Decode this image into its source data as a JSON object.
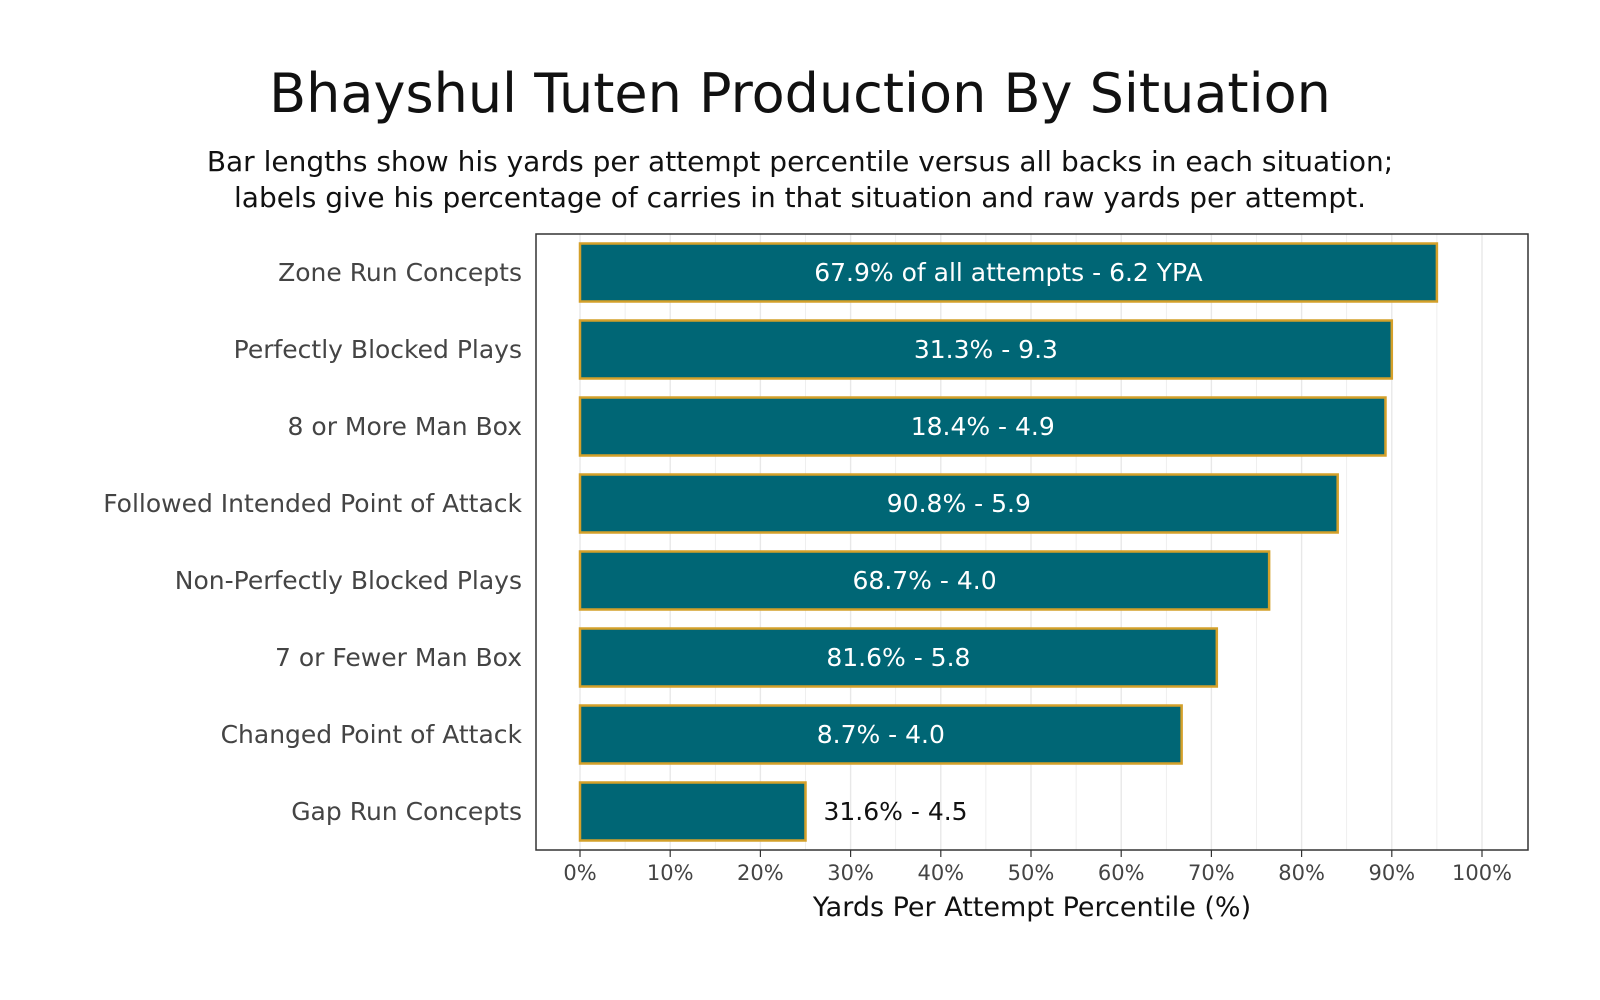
{
  "title": "Bhayshul Tuten Production By Situation",
  "subtitle_lines": [
    "Bar lengths show his yards per attempt percentile versus all backs in each situation;",
    "labels give his percentage of carries in that situation and raw yards per attempt."
  ],
  "colors": {
    "bar_fill": "#006675",
    "bar_stroke": "#D4A02A",
    "label_inside": "#ffffff",
    "label_outside": "#111111",
    "grid": "#E8E8E8",
    "panel_border": "#333333"
  },
  "chart_data": {
    "type": "bar",
    "orientation": "horizontal",
    "title": "Bhayshul Tuten Production By Situation",
    "xlabel": "Yards Per Attempt Percentile (%)",
    "ylabel": "",
    "xlim": [
      -5,
      105
    ],
    "x_ticks": [
      0,
      10,
      20,
      30,
      40,
      50,
      60,
      70,
      80,
      90,
      100
    ],
    "x_tick_labels": [
      "0%",
      "10%",
      "20%",
      "30%",
      "40%",
      "50%",
      "60%",
      "70%",
      "80%",
      "90%",
      "100%"
    ],
    "grid": true,
    "categories": [
      "Zone Run Concepts",
      "Perfectly Blocked Plays",
      "8 or More Man Box",
      "Followed Intended Point of Attack",
      "Non-Perfectly Blocked Plays",
      "7 or Fewer Man Box",
      "Changed Point of Attack",
      "Gap Run Concepts"
    ],
    "values": [
      95,
      90,
      89.3,
      84,
      76.4,
      70.6,
      66.7,
      25
    ],
    "labels": [
      "67.9% of all attempts - 6.2 YPA",
      "31.3% - 9.3",
      "18.4% - 4.9",
      "90.8% - 5.9",
      "68.7% - 4.0",
      "81.6% - 5.8",
      "8.7% - 4.0",
      "31.6% - 4.5"
    ]
  }
}
